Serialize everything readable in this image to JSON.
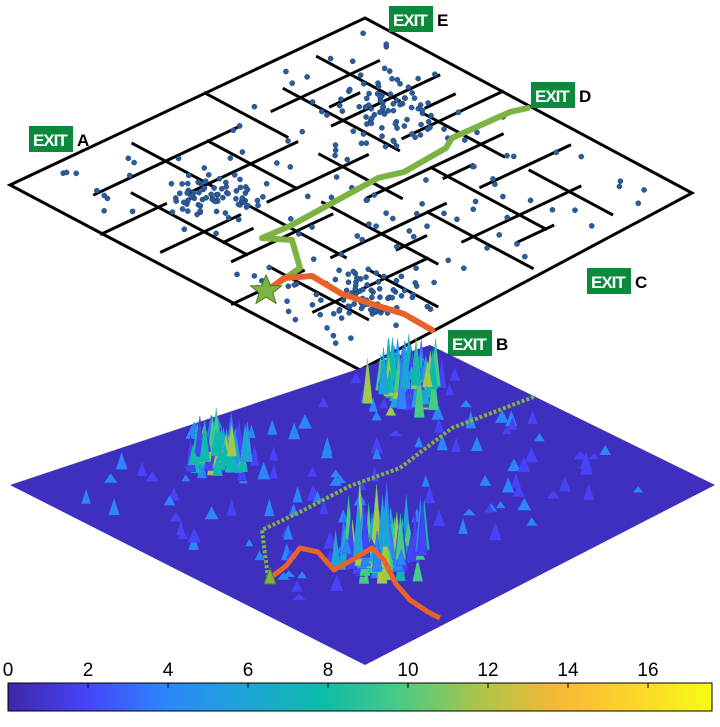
{
  "exits": [
    {
      "id": "A",
      "badge": "EXIT",
      "letter": "A"
    },
    {
      "id": "B",
      "badge": "EXIT",
      "letter": "B"
    },
    {
      "id": "C",
      "badge": "EXIT",
      "letter": "C"
    },
    {
      "id": "D",
      "badge": "EXIT",
      "letter": "D"
    },
    {
      "id": "E",
      "badge": "EXIT",
      "letter": "E"
    }
  ],
  "colorbar": {
    "min": 0,
    "max": 17.6,
    "ticks": [
      "0",
      "2",
      "4",
      "6",
      "8",
      "10",
      "12",
      "14",
      "16"
    ],
    "colormap": [
      "#3e26a8",
      "#4743f8",
      "#2c85fb",
      "#1fa4d8",
      "#0cbbaa",
      "#48cb86",
      "#a8c64a",
      "#f6b836",
      "#fbd529",
      "#f9fb15"
    ]
  },
  "paths": {
    "to_exit_d": {
      "color": "#7cb342"
    },
    "to_exit_b": {
      "color": "#e8622a"
    }
  },
  "start_marker": {
    "shape": "star-icon",
    "color": "#7cb342"
  },
  "occupant_color": "#2a5d9f",
  "surface_base_color": "#3f2fbf"
}
